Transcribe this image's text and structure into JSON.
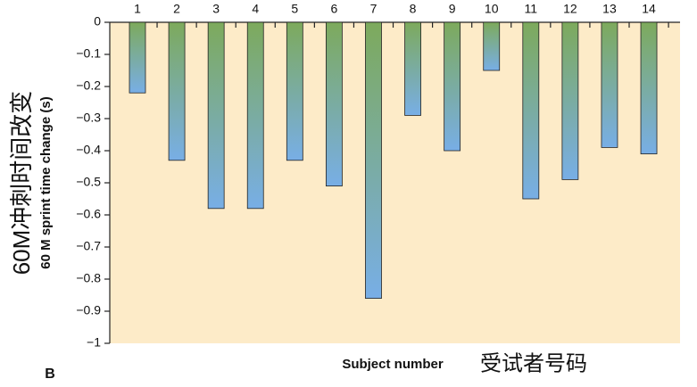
{
  "chart_data": {
    "type": "bar",
    "panel_label": "B",
    "x_label": "Subject number",
    "x_label_zh": "受试者号码",
    "y_label": "60 M sprint time change (s)",
    "y_label_zh": "60M冲刺时间改变",
    "categories": [
      "1",
      "2",
      "3",
      "4",
      "5",
      "6",
      "7",
      "8",
      "9",
      "10",
      "11",
      "12",
      "13",
      "14"
    ],
    "values": [
      -0.22,
      -0.43,
      -0.58,
      -0.58,
      -0.43,
      -0.51,
      -0.86,
      -0.29,
      -0.4,
      -0.15,
      -0.55,
      -0.49,
      -0.39,
      -0.41
    ],
    "color_top": "#7daa5c",
    "color_bottom": "#78aee6",
    "background": "#fdebc8",
    "ylim": [
      -1,
      0
    ],
    "yticks": [
      0,
      {
        "value": -0.1,
        "label": "−0.1"
      },
      {
        "value": -0.2,
        "label": "−0.2"
      },
      {
        "value": -0.3,
        "label": "−0.3"
      },
      {
        "value": -0.4,
        "label": "−0.4"
      },
      {
        "value": -0.5,
        "label": "−0.5"
      },
      {
        "value": -0.6,
        "label": "−0.6"
      },
      {
        "value": -0.7,
        "label": "−0.7"
      },
      {
        "value": -0.8,
        "label": "−0.8"
      },
      {
        "value": -0.9,
        "label": "−0.9"
      },
      {
        "value": -1,
        "label": "−1"
      }
    ]
  }
}
